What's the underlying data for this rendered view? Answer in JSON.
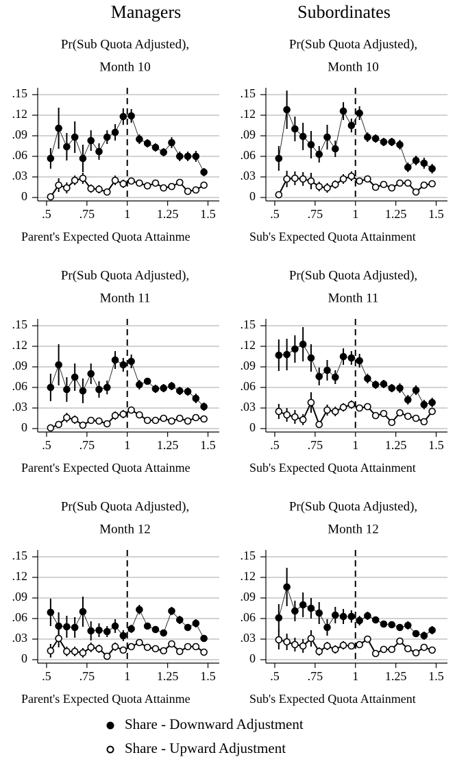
{
  "column_titles": [
    "Managers",
    "Subordinates"
  ],
  "chart_data": [
    {
      "type": "line",
      "title": "Pr(Sub Quota Adjusted),",
      "subtitle": "Month 10",
      "x_label": "Parent's Expected Quota Attainme",
      "x": [
        0.525,
        0.575,
        0.625,
        0.675,
        0.725,
        0.775,
        0.825,
        0.875,
        0.925,
        0.975,
        1.025,
        1.075,
        1.125,
        1.175,
        1.225,
        1.275,
        1.325,
        1.375,
        1.425,
        1.475
      ],
      "xlim": [
        0.445,
        1.57
      ],
      "xticks": [
        {
          "value": 0.5,
          "label": ".5"
        },
        {
          "value": 0.75,
          "label": ".75"
        },
        1,
        1.25,
        1.5
      ],
      "ylim": [
        -0.005,
        0.16
      ],
      "yticks": [
        0,
        {
          "value": 0.03,
          "label": ".03"
        },
        {
          "value": 0.06,
          "label": ".06"
        },
        {
          "value": 0.09,
          "label": ".09"
        },
        {
          "value": 0.12,
          "label": ".12"
        },
        {
          "value": 0.15,
          "label": ".15"
        }
      ],
      "grid": true,
      "vline": 1,
      "series": [
        {
          "name": "Share - Downward Adjustment",
          "color": "#000000",
          "filled": true,
          "values": [
            0.057,
            0.101,
            0.074,
            0.088,
            0.057,
            0.083,
            0.067,
            0.088,
            0.095,
            0.118,
            0.119,
            0.085,
            0.079,
            0.073,
            0.066,
            0.08,
            0.06,
            0.06,
            0.06,
            0.037
          ],
          "errors": [
            0.015,
            0.03,
            0.02,
            0.023,
            0.02,
            0.015,
            0.012,
            0.01,
            0.012,
            0.012,
            0.01,
            0.007,
            0.006,
            0.006,
            0.006,
            0.008,
            0.007,
            0.007,
            0.008,
            0.006
          ]
        },
        {
          "name": "Share - Upward Adjustment",
          "color": "#000000",
          "filled": false,
          "values": [
            0.001,
            0.018,
            0.014,
            0.025,
            0.028,
            0.013,
            0.012,
            0.008,
            0.025,
            0.02,
            0.024,
            0.021,
            0.017,
            0.021,
            0.014,
            0.016,
            0.022,
            0.009,
            0.011,
            0.018
          ],
          "errors": [
            0.002,
            0.01,
            0.008,
            0.007,
            0.008,
            0.006,
            0.006,
            0.004,
            0.007,
            0.006,
            0.004,
            0.003,
            0.003,
            0.003,
            0.003,
            0.003,
            0.004,
            0.003,
            0.003,
            0.004
          ]
        }
      ]
    },
    {
      "type": "line",
      "title": "Pr(Sub Quota Adjusted),",
      "subtitle": "Month 10",
      "x_label": "Sub's Expected Quota Attainment",
      "x": [
        0.525,
        0.575,
        0.625,
        0.675,
        0.725,
        0.775,
        0.825,
        0.875,
        0.925,
        0.975,
        1.025,
        1.075,
        1.125,
        1.175,
        1.225,
        1.275,
        1.325,
        1.375,
        1.425,
        1.475
      ],
      "xlim": [
        0.445,
        1.57
      ],
      "xticks": [
        {
          "value": 0.5,
          "label": ".5"
        },
        {
          "value": 0.75,
          "label": ".75"
        },
        1,
        1.25,
        1.5
      ],
      "ylim": [
        -0.005,
        0.16
      ],
      "yticks": [
        0,
        {
          "value": 0.03,
          "label": ".03"
        },
        {
          "value": 0.06,
          "label": ".06"
        },
        {
          "value": 0.09,
          "label": ".09"
        },
        {
          "value": 0.12,
          "label": ".12"
        },
        {
          "value": 0.15,
          "label": ".15"
        }
      ],
      "grid": true,
      "vline": 1,
      "series": [
        {
          "name": "Share - Downward Adjustment",
          "color": "#000000",
          "filled": true,
          "values": [
            0.057,
            0.128,
            0.1,
            0.089,
            0.077,
            0.063,
            0.088,
            0.071,
            0.126,
            0.105,
            0.123,
            0.088,
            0.086,
            0.081,
            0.081,
            0.077,
            0.044,
            0.054,
            0.05,
            0.042
          ],
          "errors": [
            0.018,
            0.028,
            0.018,
            0.02,
            0.02,
            0.012,
            0.018,
            0.012,
            0.013,
            0.01,
            0.01,
            0.007,
            0.006,
            0.006,
            0.006,
            0.007,
            0.007,
            0.007,
            0.008,
            0.007
          ]
        },
        {
          "name": "Share - Upward Adjustment",
          "color": "#000000",
          "filled": false,
          "values": [
            0.004,
            0.027,
            0.028,
            0.027,
            0.024,
            0.016,
            0.014,
            0.019,
            0.027,
            0.031,
            0.024,
            0.027,
            0.015,
            0.019,
            0.014,
            0.021,
            0.021,
            0.008,
            0.018,
            0.02
          ],
          "errors": [
            0.003,
            0.012,
            0.01,
            0.01,
            0.012,
            0.007,
            0.007,
            0.006,
            0.007,
            0.007,
            0.004,
            0.004,
            0.003,
            0.003,
            0.003,
            0.003,
            0.004,
            0.003,
            0.004,
            0.005
          ]
        }
      ]
    },
    {
      "type": "line",
      "title": "Pr(Sub Quota Adjusted),",
      "subtitle": "Month 11",
      "x_label": "Parent's Expected Quota Attainme",
      "x": [
        0.525,
        0.575,
        0.625,
        0.675,
        0.725,
        0.775,
        0.825,
        0.875,
        0.925,
        0.975,
        1.025,
        1.075,
        1.125,
        1.175,
        1.225,
        1.275,
        1.325,
        1.375,
        1.425,
        1.475
      ],
      "xlim": [
        0.445,
        1.57
      ],
      "xticks": [
        {
          "value": 0.5,
          "label": ".5"
        },
        {
          "value": 0.75,
          "label": ".75"
        },
        1,
        1.25,
        1.5
      ],
      "ylim": [
        -0.005,
        0.16
      ],
      "yticks": [
        0,
        {
          "value": 0.03,
          "label": ".03"
        },
        {
          "value": 0.06,
          "label": ".06"
        },
        {
          "value": 0.09,
          "label": ".09"
        },
        {
          "value": 0.12,
          "label": ".12"
        },
        {
          "value": 0.15,
          "label": ".15"
        }
      ],
      "grid": true,
      "vline": 1,
      "series": [
        {
          "name": "Share - Downward Adjustment",
          "color": "#000000",
          "filled": true,
          "values": [
            0.06,
            0.093,
            0.057,
            0.075,
            0.055,
            0.08,
            0.057,
            0.06,
            0.1,
            0.093,
            0.098,
            0.064,
            0.069,
            0.058,
            0.059,
            0.062,
            0.055,
            0.054,
            0.044,
            0.032
          ],
          "errors": [
            0.02,
            0.03,
            0.018,
            0.02,
            0.018,
            0.015,
            0.012,
            0.01,
            0.013,
            0.01,
            0.01,
            0.007,
            0.005,
            0.006,
            0.006,
            0.006,
            0.006,
            0.006,
            0.007,
            0.006
          ]
        },
        {
          "name": "Share - Upward Adjustment",
          "color": "#000000",
          "filled": false,
          "values": [
            0.001,
            0.006,
            0.016,
            0.013,
            0.005,
            0.012,
            0.011,
            0.007,
            0.019,
            0.021,
            0.027,
            0.02,
            0.012,
            0.012,
            0.015,
            0.011,
            0.015,
            0.011,
            0.016,
            0.014
          ],
          "errors": [
            0.002,
            0.004,
            0.007,
            0.006,
            0.004,
            0.005,
            0.005,
            0.003,
            0.006,
            0.006,
            0.004,
            0.003,
            0.002,
            0.002,
            0.003,
            0.003,
            0.003,
            0.003,
            0.003,
            0.003
          ]
        }
      ]
    },
    {
      "type": "line",
      "title": "Pr(Sub Quota Adjusted),",
      "subtitle": "Month 11",
      "x_label": "Sub's Expected Quota Attainment",
      "x": [
        0.525,
        0.575,
        0.625,
        0.675,
        0.725,
        0.775,
        0.825,
        0.875,
        0.925,
        0.975,
        1.025,
        1.075,
        1.125,
        1.175,
        1.225,
        1.275,
        1.325,
        1.375,
        1.425,
        1.475
      ],
      "xlim": [
        0.445,
        1.57
      ],
      "xticks": [
        {
          "value": 0.5,
          "label": ".5"
        },
        {
          "value": 0.75,
          "label": ".75"
        },
        1,
        1.25,
        1.5
      ],
      "ylim": [
        -0.005,
        0.16
      ],
      "yticks": [
        0,
        {
          "value": 0.03,
          "label": ".03"
        },
        {
          "value": 0.06,
          "label": ".06"
        },
        {
          "value": 0.09,
          "label": ".09"
        },
        {
          "value": 0.12,
          "label": ".12"
        },
        {
          "value": 0.15,
          "label": ".15"
        }
      ],
      "grid": true,
      "vline": 1,
      "series": [
        {
          "name": "Share - Downward Adjustment",
          "color": "#000000",
          "filled": true,
          "values": [
            0.107,
            0.108,
            0.116,
            0.123,
            0.103,
            0.076,
            0.085,
            0.075,
            0.105,
            0.103,
            0.099,
            0.073,
            0.064,
            0.065,
            0.059,
            0.059,
            0.042,
            0.056,
            0.035,
            0.038
          ],
          "errors": [
            0.023,
            0.023,
            0.02,
            0.025,
            0.02,
            0.013,
            0.015,
            0.01,
            0.012,
            0.01,
            0.01,
            0.007,
            0.006,
            0.006,
            0.006,
            0.007,
            0.007,
            0.007,
            0.007,
            0.007
          ]
        },
        {
          "name": "Share - Upward Adjustment",
          "color": "#000000",
          "filled": false,
          "values": [
            0.025,
            0.02,
            0.017,
            0.013,
            0.038,
            0.006,
            0.027,
            0.025,
            0.031,
            0.035,
            0.03,
            0.032,
            0.019,
            0.022,
            0.009,
            0.023,
            0.018,
            0.015,
            0.01,
            0.025
          ],
          "errors": [
            0.011,
            0.01,
            0.01,
            0.008,
            0.015,
            0.004,
            0.008,
            0.007,
            0.006,
            0.006,
            0.004,
            0.004,
            0.003,
            0.003,
            0.003,
            0.004,
            0.004,
            0.003,
            0.004,
            0.005
          ]
        }
      ]
    },
    {
      "type": "line",
      "title": "Pr(Sub Quota Adjusted),",
      "subtitle": "Month 12",
      "x_label": "Parent's Expected Quota Attainme",
      "x": [
        0.525,
        0.575,
        0.625,
        0.675,
        0.725,
        0.775,
        0.825,
        0.875,
        0.925,
        0.975,
        1.025,
        1.075,
        1.125,
        1.175,
        1.225,
        1.275,
        1.325,
        1.375,
        1.425,
        1.475
      ],
      "xlim": [
        0.445,
        1.57
      ],
      "xticks": [
        {
          "value": 0.5,
          "label": ".5"
        },
        {
          "value": 0.75,
          "label": ".75"
        },
        1,
        1.25,
        1.5
      ],
      "ylim": [
        -0.005,
        0.16
      ],
      "yticks": [
        0,
        {
          "value": 0.03,
          "label": ".03"
        },
        {
          "value": 0.06,
          "label": ".06"
        },
        {
          "value": 0.09,
          "label": ".09"
        },
        {
          "value": 0.12,
          "label": ".12"
        },
        {
          "value": 0.15,
          "label": ".15"
        }
      ],
      "grid": true,
      "vline": 1,
      "series": [
        {
          "name": "Share - Downward Adjustment",
          "color": "#000000",
          "filled": true,
          "values": [
            0.069,
            0.049,
            0.048,
            0.047,
            0.07,
            0.042,
            0.043,
            0.041,
            0.049,
            0.035,
            0.045,
            0.073,
            0.049,
            0.044,
            0.039,
            0.071,
            0.058,
            0.047,
            0.053,
            0.031
          ],
          "errors": [
            0.02,
            0.02,
            0.016,
            0.015,
            0.022,
            0.014,
            0.01,
            0.008,
            0.01,
            0.008,
            0.006,
            0.007,
            0.005,
            0.005,
            0.005,
            0.006,
            0.006,
            0.005,
            0.006,
            0.005
          ]
        },
        {
          "name": "Share - Upward Adjustment",
          "color": "#000000",
          "filled": false,
          "values": [
            0.013,
            0.031,
            0.012,
            0.012,
            0.01,
            0.018,
            0.016,
            0.005,
            0.019,
            0.014,
            0.019,
            0.025,
            0.018,
            0.016,
            0.013,
            0.023,
            0.012,
            0.019,
            0.019,
            0.011
          ],
          "errors": [
            0.01,
            0.013,
            0.007,
            0.007,
            0.007,
            0.007,
            0.006,
            0.003,
            0.006,
            0.005,
            0.004,
            0.003,
            0.003,
            0.003,
            0.003,
            0.003,
            0.002,
            0.003,
            0.003,
            0.003
          ]
        }
      ]
    },
    {
      "type": "line",
      "title": "Pr(Sub Quota Adjusted),",
      "subtitle": "Month 12",
      "x_label": "Sub's Expected Quota Attainment",
      "x": [
        0.525,
        0.575,
        0.625,
        0.675,
        0.725,
        0.775,
        0.825,
        0.875,
        0.925,
        0.975,
        1.025,
        1.075,
        1.125,
        1.175,
        1.225,
        1.275,
        1.325,
        1.375,
        1.425,
        1.475
      ],
      "xlim": [
        0.445,
        1.57
      ],
      "xticks": [
        {
          "value": 0.5,
          "label": ".5"
        },
        {
          "value": 0.75,
          "label": ".75"
        },
        1,
        1.25,
        1.5
      ],
      "ylim": [
        -0.005,
        0.16
      ],
      "yticks": [
        0,
        {
          "value": 0.03,
          "label": ".03"
        },
        {
          "value": 0.06,
          "label": ".06"
        },
        {
          "value": 0.09,
          "label": ".09"
        },
        {
          "value": 0.12,
          "label": ".12"
        },
        {
          "value": 0.15,
          "label": ".15"
        }
      ],
      "grid": true,
      "vline": 1,
      "series": [
        {
          "name": "Share - Downward Adjustment",
          "color": "#000000",
          "filled": true,
          "values": [
            0.061,
            0.106,
            0.071,
            0.08,
            0.075,
            0.068,
            0.047,
            0.065,
            0.063,
            0.063,
            0.057,
            0.064,
            0.058,
            0.052,
            0.051,
            0.047,
            0.05,
            0.038,
            0.035,
            0.043
          ],
          "errors": [
            0.02,
            0.028,
            0.015,
            0.018,
            0.015,
            0.016,
            0.012,
            0.012,
            0.011,
            0.009,
            0.007,
            0.006,
            0.005,
            0.005,
            0.005,
            0.005,
            0.006,
            0.005,
            0.006,
            0.006
          ]
        },
        {
          "name": "Share - Upward Adjustment",
          "color": "#000000",
          "filled": false,
          "values": [
            0.029,
            0.026,
            0.022,
            0.02,
            0.031,
            0.012,
            0.02,
            0.015,
            0.021,
            0.02,
            0.022,
            0.03,
            0.009,
            0.015,
            0.015,
            0.027,
            0.016,
            0.01,
            0.018,
            0.014
          ],
          "errors": [
            0.014,
            0.012,
            0.01,
            0.01,
            0.012,
            0.006,
            0.006,
            0.006,
            0.006,
            0.005,
            0.004,
            0.004,
            0.003,
            0.003,
            0.003,
            0.003,
            0.003,
            0.003,
            0.003,
            0.003
          ]
        }
      ]
    }
  ]
}
